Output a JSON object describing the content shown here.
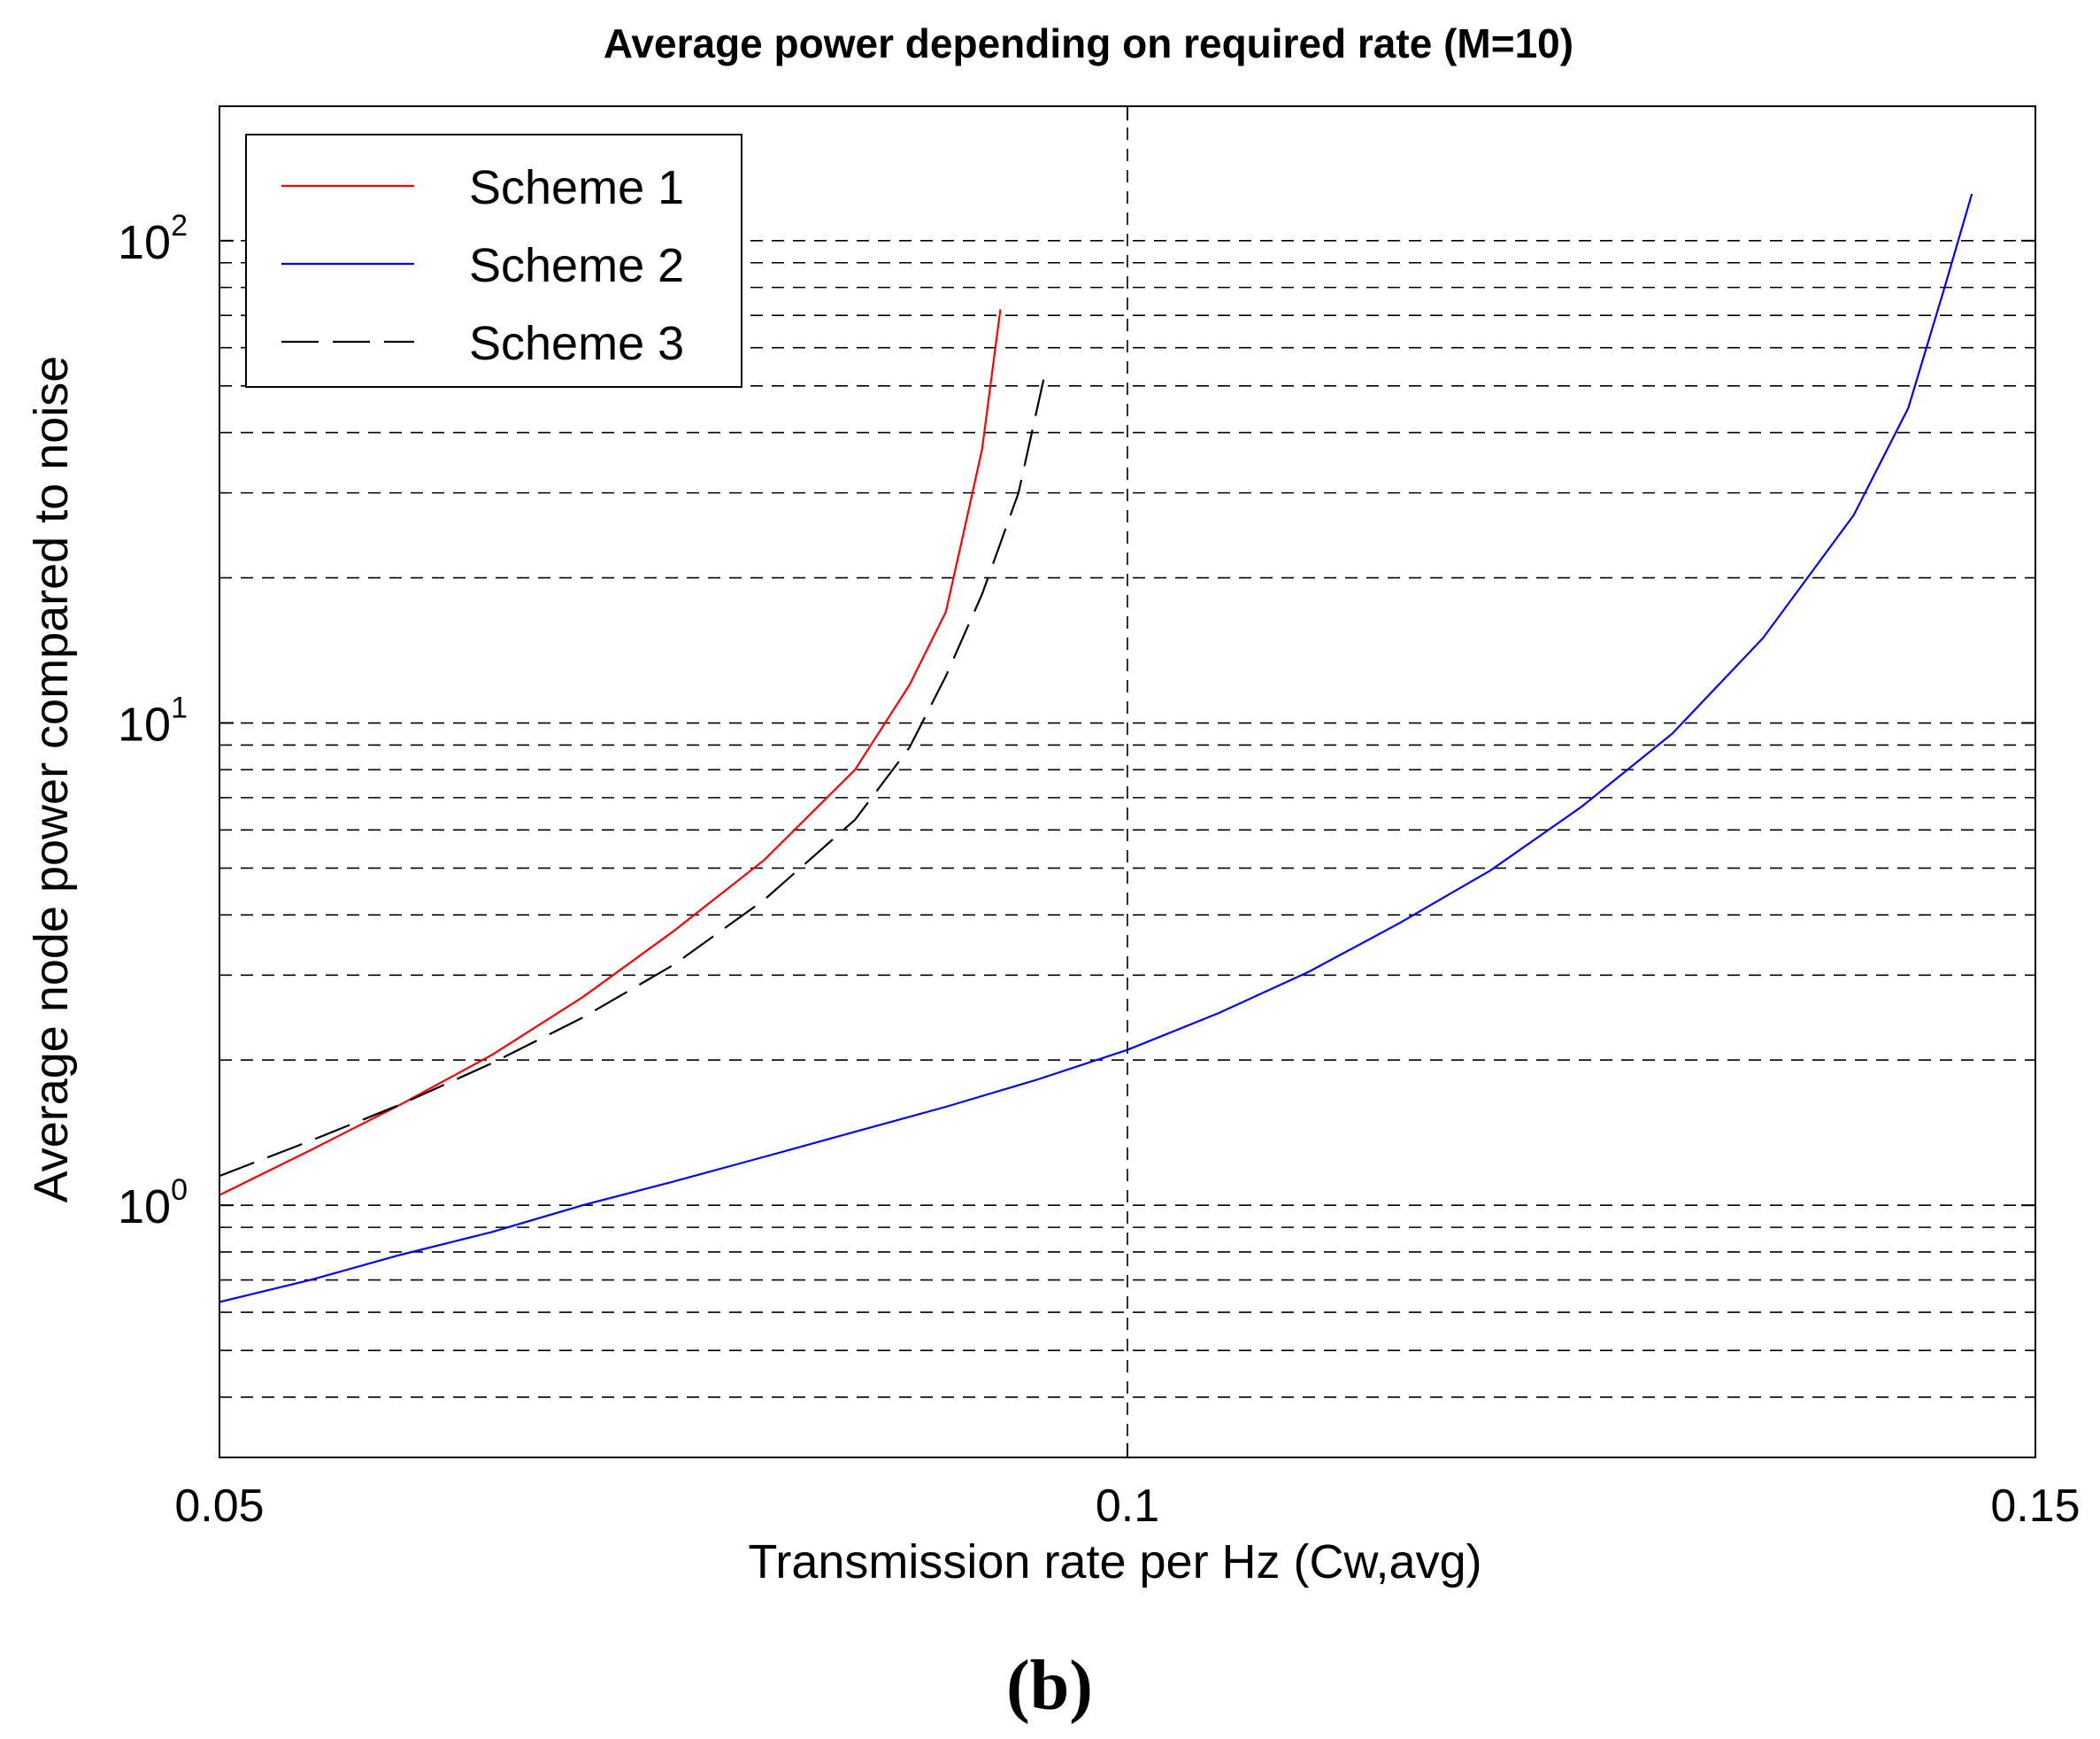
{
  "chart_data": {
    "type": "line",
    "title": "Average power depending on required rate (M=10)",
    "xlabel": "Transmission rate per Hz (Cw,avg)",
    "ylabel": "Average node power compared to noise",
    "panel_label": "(b)",
    "xscale": "linear",
    "yscale": "log",
    "xlim": [
      0.05,
      0.15
    ],
    "ylim": [
      0.3,
      190
    ],
    "x_ticks": [
      0.05,
      0.1,
      0.15
    ],
    "x_tick_labels": [
      "0.05",
      "0.1",
      "0.15"
    ],
    "y_ticks": [
      {
        "value": 1,
        "base": "10",
        "exp": "0"
      },
      {
        "value": 10,
        "base": "10",
        "exp": "1"
      },
      {
        "value": 100,
        "base": "10",
        "exp": "2"
      }
    ],
    "grid": {
      "y_minor": true,
      "x_major": true
    },
    "legend_position": "top-left",
    "series": [
      {
        "name": "Scheme 1",
        "color": "#ff0000",
        "style": "solid",
        "x": [
          0.05,
          0.055,
          0.06,
          0.065,
          0.07,
          0.075,
          0.08,
          0.085,
          0.088,
          0.09,
          0.091,
          0.092,
          0.093
        ],
        "y": [
          1.05,
          1.3,
          1.62,
          2.05,
          2.7,
          3.7,
          5.2,
          8.0,
          12.0,
          17.0,
          25.0,
          37.0,
          72.0
        ]
      },
      {
        "name": "Scheme 2",
        "color": "#0000ff",
        "style": "solid",
        "x": [
          0.05,
          0.055,
          0.06,
          0.065,
          0.07,
          0.075,
          0.08,
          0.085,
          0.09,
          0.095,
          0.1,
          0.105,
          0.11,
          0.115,
          0.12,
          0.125,
          0.13,
          0.135,
          0.14,
          0.143,
          0.145,
          0.1465
        ],
        "y": [
          0.63,
          0.7,
          0.79,
          0.88,
          1.0,
          1.12,
          1.26,
          1.42,
          1.6,
          1.82,
          2.1,
          2.5,
          3.05,
          3.85,
          4.95,
          6.7,
          9.5,
          15.0,
          27.0,
          45.0,
          80.0,
          125.0
        ]
      },
      {
        "name": "Scheme 3",
        "color": "#000000",
        "style": "dashed",
        "x": [
          0.05,
          0.055,
          0.06,
          0.065,
          0.07,
          0.075,
          0.08,
          0.085,
          0.088,
          0.09,
          0.092,
          0.094,
          0.0955
        ],
        "y": [
          1.15,
          1.36,
          1.62,
          1.97,
          2.45,
          3.15,
          4.3,
          6.3,
          8.9,
          12.5,
          18.5,
          30.0,
          54.0
        ]
      }
    ]
  }
}
